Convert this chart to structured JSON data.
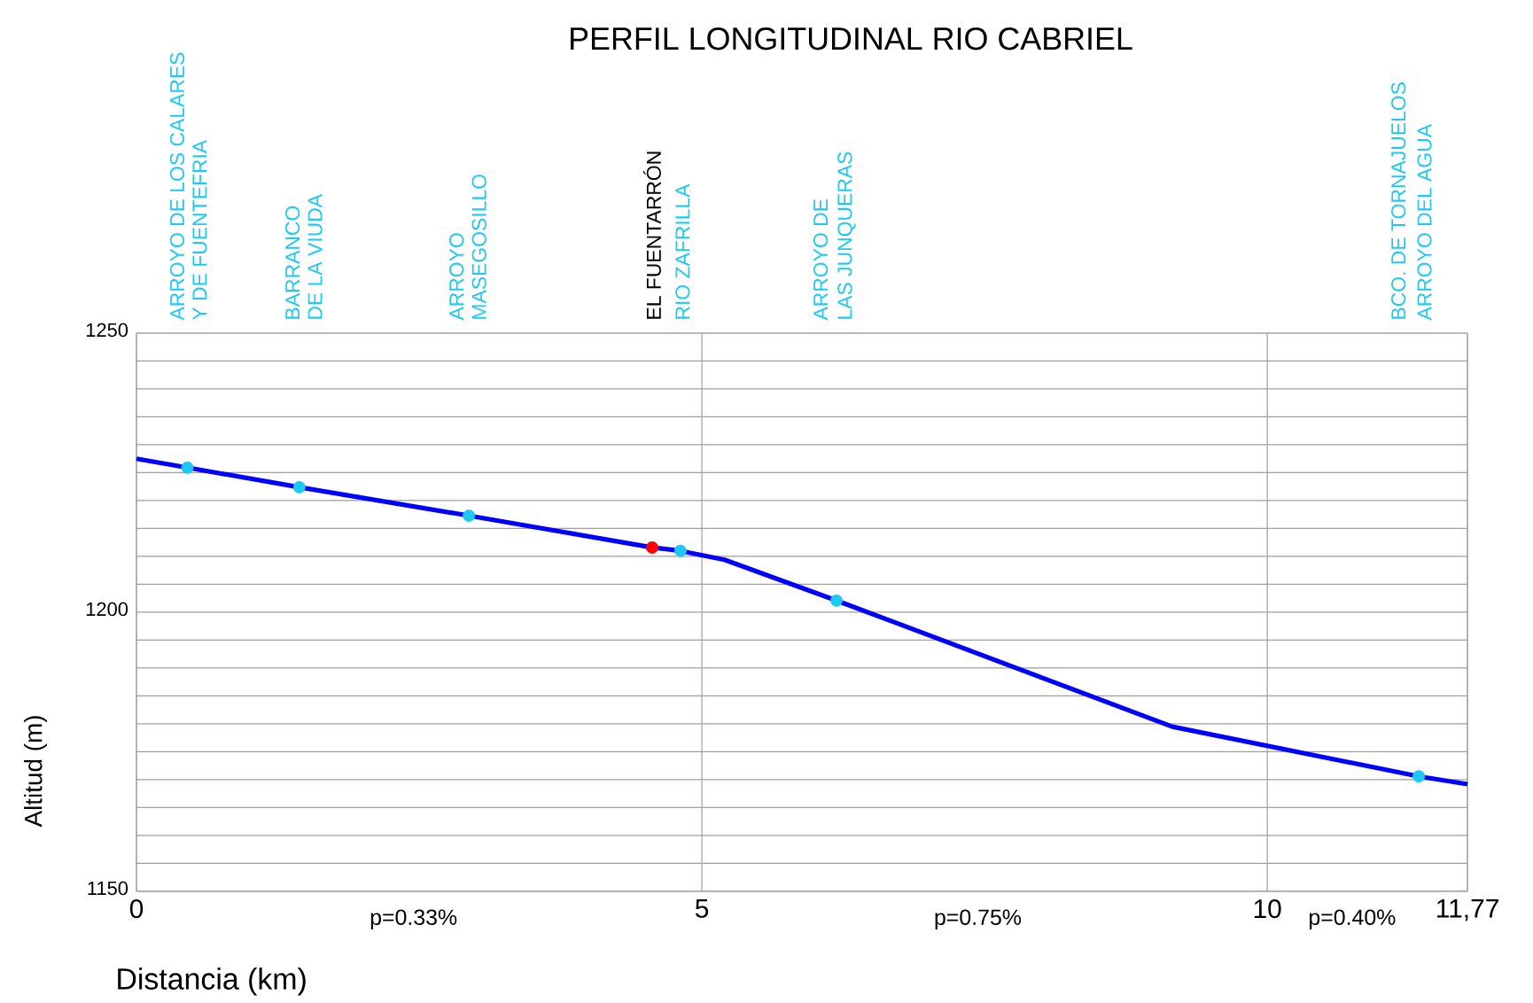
{
  "chart_data": {
    "type": "line",
    "title": "PERFIL LONGITUDINAL RIO CABRIEL",
    "xlabel": "Distancia (km)",
    "ylabel": "Altitud (m)",
    "xlim": [
      0,
      11.77
    ],
    "ylim": [
      1150,
      1250
    ],
    "xticks": [
      0,
      5,
      10,
      {
        "value": 11.77,
        "label": "11,77"
      }
    ],
    "yticks": [
      1150,
      1200,
      1250
    ],
    "grid": true,
    "series": [
      {
        "type": "line",
        "color": "#0000ff",
        "x": [
          0,
          0.45,
          1.44,
          2.94,
          4.56,
          4.81,
          5.2,
          6.19,
          9.16,
          11.34,
          11.77
        ],
        "values": [
          1227.5,
          1225.9,
          1222.4,
          1217.3,
          1211.6,
          1211.0,
          1209.4,
          1202.1,
          1179.5,
          1170.6,
          1169.2
        ]
      },
      {
        "type": "scatter",
        "marker": "circle",
        "x": [
          0.45,
          1.44,
          2.94,
          4.56,
          4.81,
          6.19,
          11.34
        ],
        "values": [
          1225.9,
          1222.4,
          1217.3,
          1211.6,
          1211.0,
          1202.1,
          1170.6
        ],
        "colors": [
          "#1ec8f5",
          "#1ec8f5",
          "#1ec8f5",
          "#ff0000",
          "#1ec8f5",
          "#1ec8f5",
          "#1ec8f5"
        ]
      }
    ],
    "annotations": [
      "ARROYO DE LOS CALARES",
      "Y DE FUENTEFRIA",
      "BARRANCO",
      "DE LA VIUDA",
      "ARROYO",
      "MASEGOSILLO",
      "EL FUENTARRÓN",
      "RIO ZAFRILLA",
      "ARROYO DE",
      "LAS JUNQUERAS",
      "BCO. DE TORNAJUELOS",
      "ARROYO DEL AGUA",
      "p=0.33%",
      "p=0.75%",
      "p=0.40%"
    ]
  }
}
